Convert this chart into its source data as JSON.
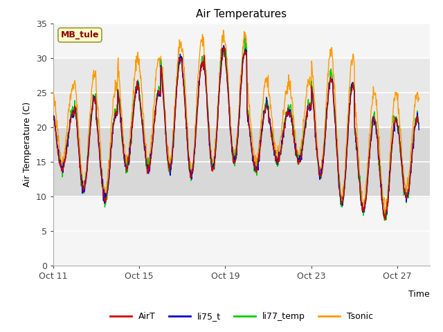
{
  "title": "Air Temperatures",
  "xlabel": "Time",
  "ylabel": "Air Temperature (C)",
  "annotation_text": "MB_tule",
  "ylim": [
    0,
    35
  ],
  "xlim_days": [
    0,
    17.5
  ],
  "yticks": [
    0,
    5,
    10,
    15,
    20,
    25,
    30,
    35
  ],
  "xtick_labels": [
    "Oct 11",
    "Oct 15",
    "Oct 19",
    "Oct 23",
    "Oct 27"
  ],
  "xtick_positions": [
    0,
    4,
    8,
    12,
    16
  ],
  "colors": {
    "AirT": "#cc0000",
    "li75_t": "#0000cc",
    "li77_temp": "#00cc00",
    "Tsonic": "#ff9900"
  },
  "bg_band_lower": [
    10,
    20
  ],
  "bg_band_upper": [
    20,
    30
  ],
  "bg_color_lower": "#d8d8d8",
  "bg_color_upper": "#e8e8e8",
  "grid_color": "#ffffff",
  "plot_bg": "#f5f5f5",
  "seed": 42,
  "n_points": 1020
}
